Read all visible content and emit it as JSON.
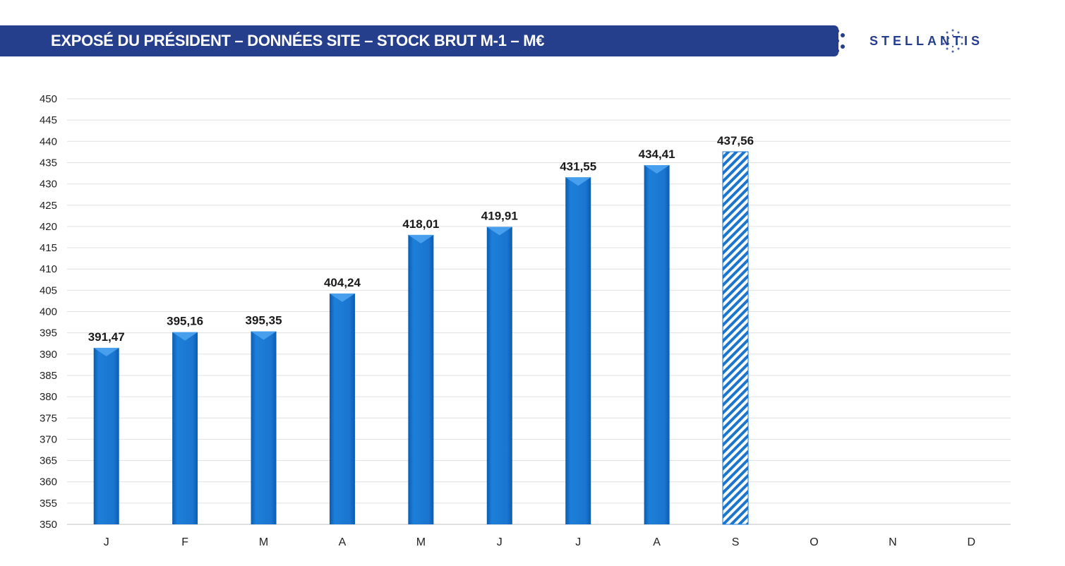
{
  "header": {
    "title": "EXPOSÉ DU PRÉSIDENT – DONNÉES SITE – STOCK BRUT M-1 – M€",
    "logo_text": "STELLANTIS",
    "brand_color": "#263f8c"
  },
  "chart_data": {
    "type": "bar",
    "title": "EXPOSÉ DU PRÉSIDENT – DONNÉES SITE – STOCK BRUT M-1 – M€",
    "xlabel": "",
    "ylabel": "",
    "ylim": [
      350,
      450
    ],
    "ytick_step": 5,
    "grid": true,
    "categories": [
      "J",
      "F",
      "M",
      "A",
      "M",
      "J",
      "J",
      "A",
      "S",
      "O",
      "N",
      "D"
    ],
    "values": [
      391.47,
      395.16,
      395.35,
      404.24,
      418.01,
      419.91,
      431.55,
      434.41,
      437.56,
      null,
      null,
      null
    ],
    "labels": [
      "391,47",
      "395,16",
      "395,35",
      "404,24",
      "418,01",
      "419,91",
      "431,55",
      "434,41",
      "437,56",
      "",
      "",
      ""
    ],
    "styles": [
      "solid",
      "solid",
      "solid",
      "solid",
      "solid",
      "solid",
      "solid",
      "solid",
      "hatched",
      "",
      "",
      ""
    ],
    "bar_color": "#1a75cf",
    "hatch_color": "#1a75cf"
  }
}
